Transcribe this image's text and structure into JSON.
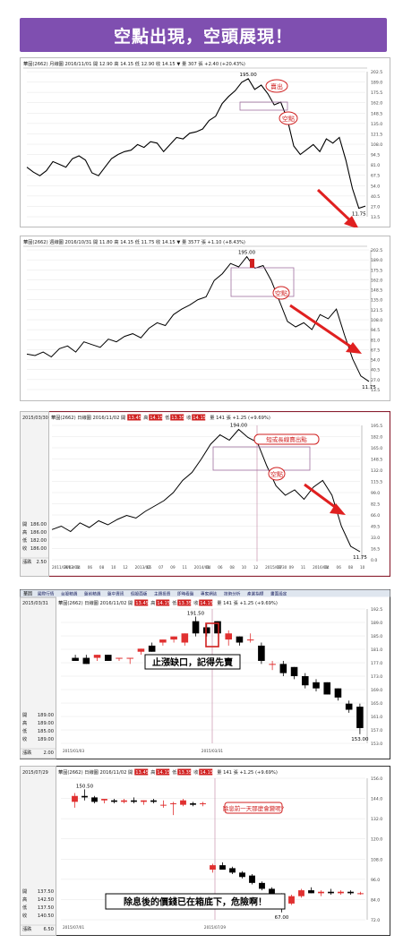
{
  "banner": {
    "title": "空點出現，空頭展現！"
  },
  "panels": [
    {
      "type": "line",
      "info": "華固(2662) 月線圖 2016/11/01 開 12.90 高 14.15 低 12.90 收 14.15 ▼ 量 307 張 +2.40 (+20.43%)",
      "peak_label": "195.00",
      "low_label": "11.75",
      "y_ticks": [
        "202.5",
        "189.0",
        "175.5",
        "162.0",
        "148.5",
        "135.0",
        "121.5",
        "108.0",
        "94.5",
        "81.0",
        "67.5",
        "54.0",
        "40.5",
        "27.0",
        "13.5"
      ],
      "annotations": [
        "賣出",
        "空點"
      ],
      "series": [
        {
          "x": 0,
          "y": 70
        },
        {
          "x": 4,
          "y": 63
        },
        {
          "x": 8,
          "y": 58
        },
        {
          "x": 12,
          "y": 65
        },
        {
          "x": 16,
          "y": 78
        },
        {
          "x": 20,
          "y": 74
        },
        {
          "x": 24,
          "y": 70
        },
        {
          "x": 28,
          "y": 82
        },
        {
          "x": 32,
          "y": 86
        },
        {
          "x": 36,
          "y": 80
        },
        {
          "x": 40,
          "y": 62
        },
        {
          "x": 44,
          "y": 58
        },
        {
          "x": 48,
          "y": 70
        },
        {
          "x": 52,
          "y": 82
        },
        {
          "x": 56,
          "y": 88
        },
        {
          "x": 60,
          "y": 92
        },
        {
          "x": 64,
          "y": 94
        },
        {
          "x": 68,
          "y": 102
        },
        {
          "x": 72,
          "y": 98
        },
        {
          "x": 76,
          "y": 106
        },
        {
          "x": 80,
          "y": 104
        },
        {
          "x": 84,
          "y": 92
        },
        {
          "x": 88,
          "y": 102
        },
        {
          "x": 92,
          "y": 112
        },
        {
          "x": 96,
          "y": 110
        },
        {
          "x": 100,
          "y": 118
        },
        {
          "x": 104,
          "y": 120
        },
        {
          "x": 108,
          "y": 124
        },
        {
          "x": 112,
          "y": 136
        },
        {
          "x": 116,
          "y": 142
        },
        {
          "x": 120,
          "y": 160
        },
        {
          "x": 124,
          "y": 170
        },
        {
          "x": 128,
          "y": 178
        },
        {
          "x": 132,
          "y": 190
        },
        {
          "x": 136,
          "y": 195
        },
        {
          "x": 140,
          "y": 180
        },
        {
          "x": 144,
          "y": 186
        },
        {
          "x": 148,
          "y": 174
        },
        {
          "x": 152,
          "y": 158
        },
        {
          "x": 156,
          "y": 162
        },
        {
          "x": 160,
          "y": 138
        },
        {
          "x": 164,
          "y": 100
        },
        {
          "x": 168,
          "y": 88
        },
        {
          "x": 172,
          "y": 95
        },
        {
          "x": 176,
          "y": 102
        },
        {
          "x": 180,
          "y": 92
        },
        {
          "x": 184,
          "y": 110
        },
        {
          "x": 188,
          "y": 104
        },
        {
          "x": 192,
          "y": 112
        },
        {
          "x": 196,
          "y": 80
        },
        {
          "x": 200,
          "y": 40
        },
        {
          "x": 204,
          "y": 12
        },
        {
          "x": 208,
          "y": 15
        }
      ]
    },
    {
      "type": "line",
      "info": "華固(2662) 週線圖 2016/10/31 開 11.80 高 14.15 低 11.75 收 14.15 ▼ 量 3577 張 +1.10 (+8.43%)",
      "peak_label": "195.00",
      "low_label": "11.75",
      "y_ticks": [
        "202.5",
        "189.0",
        "175.5",
        "162.0",
        "148.5",
        "135.0",
        "121.5",
        "108.0",
        "94.5",
        "81.0",
        "67.5",
        "54.0",
        "40.5",
        "27.0",
        "13.5"
      ],
      "annotations": [
        "空點"
      ],
      "series": [
        {
          "x": 0,
          "y": 52
        },
        {
          "x": 5,
          "y": 50
        },
        {
          "x": 10,
          "y": 55
        },
        {
          "x": 15,
          "y": 48
        },
        {
          "x": 20,
          "y": 60
        },
        {
          "x": 25,
          "y": 64
        },
        {
          "x": 30,
          "y": 55
        },
        {
          "x": 35,
          "y": 70
        },
        {
          "x": 40,
          "y": 66
        },
        {
          "x": 45,
          "y": 62
        },
        {
          "x": 50,
          "y": 74
        },
        {
          "x": 55,
          "y": 70
        },
        {
          "x": 60,
          "y": 78
        },
        {
          "x": 65,
          "y": 82
        },
        {
          "x": 70,
          "y": 76
        },
        {
          "x": 75,
          "y": 90
        },
        {
          "x": 80,
          "y": 98
        },
        {
          "x": 85,
          "y": 94
        },
        {
          "x": 90,
          "y": 110
        },
        {
          "x": 95,
          "y": 118
        },
        {
          "x": 100,
          "y": 124
        },
        {
          "x": 105,
          "y": 132
        },
        {
          "x": 110,
          "y": 136
        },
        {
          "x": 115,
          "y": 160
        },
        {
          "x": 120,
          "y": 170
        },
        {
          "x": 125,
          "y": 185
        },
        {
          "x": 130,
          "y": 180
        },
        {
          "x": 135,
          "y": 195
        },
        {
          "x": 140,
          "y": 178
        },
        {
          "x": 145,
          "y": 182
        },
        {
          "x": 150,
          "y": 160
        },
        {
          "x": 155,
          "y": 130
        },
        {
          "x": 160,
          "y": 100
        },
        {
          "x": 165,
          "y": 92
        },
        {
          "x": 170,
          "y": 98
        },
        {
          "x": 175,
          "y": 88
        },
        {
          "x": 180,
          "y": 110
        },
        {
          "x": 185,
          "y": 104
        },
        {
          "x": 190,
          "y": 118
        },
        {
          "x": 195,
          "y": 80
        },
        {
          "x": 200,
          "y": 45
        },
        {
          "x": 205,
          "y": 20
        },
        {
          "x": 210,
          "y": 12
        }
      ]
    },
    {
      "type": "line",
      "date": "2015/03/30",
      "info_left": "華固(2662) 日線圖 2016/11/02 開",
      "info_vals": [
        "13.45",
        "14.15",
        "13.35",
        "14.15"
      ],
      "info_right": "量 141 張 +1.25 (+9.69%)",
      "peak_label": "194.00",
      "low_label": "11.75",
      "ohlc": [
        [
          "開",
          "186.00"
        ],
        [
          "高",
          "186.00"
        ],
        [
          "低",
          "182.00"
        ],
        [
          "收",
          "186.00"
        ]
      ],
      "vol_label": "漲跌",
      "vol_value": "2.50",
      "x_labels": [
        "2011/09/03",
        "2012/01",
        "04",
        "06",
        "08",
        "10",
        "12",
        "2013/02",
        "05",
        "07",
        "09",
        "11",
        "2014/01",
        "04",
        "06",
        "08",
        "10",
        "12",
        "2015/03/30",
        "07",
        "09",
        "11",
        "2016/01",
        "04",
        "06",
        "08",
        "10"
      ],
      "y_ticks": [
        "195.5",
        "182.0",
        "165.0",
        "148.5",
        "132.0",
        "115.5",
        "99.0",
        "82.5",
        "66.0",
        "49.5",
        "33.0",
        "16.5",
        "0.0"
      ],
      "annotations": [
        "短或長線賣出點",
        "空點"
      ],
      "series": [
        {
          "x": 0,
          "y": 45
        },
        {
          "x": 8,
          "y": 50
        },
        {
          "x": 16,
          "y": 42
        },
        {
          "x": 24,
          "y": 55
        },
        {
          "x": 32,
          "y": 48
        },
        {
          "x": 40,
          "y": 58
        },
        {
          "x": 48,
          "y": 52
        },
        {
          "x": 56,
          "y": 60
        },
        {
          "x": 64,
          "y": 66
        },
        {
          "x": 72,
          "y": 62
        },
        {
          "x": 80,
          "y": 72
        },
        {
          "x": 88,
          "y": 80
        },
        {
          "x": 96,
          "y": 88
        },
        {
          "x": 104,
          "y": 100
        },
        {
          "x": 112,
          "y": 118
        },
        {
          "x": 120,
          "y": 130
        },
        {
          "x": 128,
          "y": 150
        },
        {
          "x": 136,
          "y": 172
        },
        {
          "x": 144,
          "y": 186
        },
        {
          "x": 152,
          "y": 178
        },
        {
          "x": 160,
          "y": 194
        },
        {
          "x": 168,
          "y": 182
        },
        {
          "x": 176,
          "y": 175
        },
        {
          "x": 184,
          "y": 140
        },
        {
          "x": 192,
          "y": 110
        },
        {
          "x": 200,
          "y": 96
        },
        {
          "x": 208,
          "y": 104
        },
        {
          "x": 216,
          "y": 90
        },
        {
          "x": 224,
          "y": 108
        },
        {
          "x": 232,
          "y": 118
        },
        {
          "x": 240,
          "y": 96
        },
        {
          "x": 248,
          "y": 50
        },
        {
          "x": 256,
          "y": 20
        },
        {
          "x": 264,
          "y": 12
        }
      ]
    },
    {
      "type": "candlestick",
      "date": "2015/03/31",
      "toolbar_left": "華固",
      "toolbar": [
        "國際行情",
        "台股精選",
        "盤前精選",
        "盤中資訊",
        "個股面版",
        "主題投資",
        "即時看盤",
        "專家網誌",
        "技術分析",
        "產業指標",
        "畫面設定"
      ],
      "info_left": "華固(2662) 日線圖 2016/11/02 開",
      "info_vals": [
        "13.45",
        "14.15",
        "13.35",
        "14.15"
      ],
      "info_right": "量 141 張 +1.25 (+9.69%)",
      "peak_label": "191.50",
      "low_label": "153.00",
      "ohlc": [
        [
          "開",
          "189.00"
        ],
        [
          "高",
          "189.00"
        ],
        [
          "低",
          "185.00"
        ],
        [
          "收",
          "189.00"
        ]
      ],
      "vol_label": "漲跌",
      "vol_value": "2.00",
      "x_labels": [
        "2015/01/03",
        "2015/03/31"
      ],
      "y_ticks": [
        "192.5",
        "189.0",
        "185.0",
        "181.0",
        "177.0",
        "173.0",
        "169.0",
        "165.0",
        "161.0",
        "157.0",
        "153.0"
      ],
      "annotations": [
        "止漲缺口，記得先賣"
      ],
      "ylim": [
        150,
        194
      ],
      "candles": [
        {
          "o": 178,
          "h": 179,
          "l": 177,
          "c": 177
        },
        {
          "o": 178,
          "h": 179,
          "l": 176,
          "c": 176
        },
        {
          "o": 178,
          "h": 179,
          "l": 177,
          "c": 179
        },
        {
          "o": 179,
          "h": 179,
          "l": 177,
          "c": 177
        },
        {
          "o": 178,
          "h": 178,
          "l": 177,
          "c": 178
        },
        {
          "o": 178,
          "h": 178,
          "l": 176,
          "c": 178
        },
        {
          "o": 180,
          "h": 181,
          "l": 179,
          "c": 181
        },
        {
          "o": 182,
          "h": 183,
          "l": 180,
          "c": 180
        },
        {
          "o": 183,
          "h": 184,
          "l": 182,
          "c": 184
        },
        {
          "o": 184,
          "h": 185,
          "l": 183,
          "c": 185
        },
        {
          "o": 183,
          "h": 186,
          "l": 182,
          "c": 186
        },
        {
          "o": 190,
          "h": 191.5,
          "l": 185,
          "c": 186
        },
        {
          "o": 188,
          "h": 189,
          "l": 185,
          "c": 186
        },
        {
          "o": 190,
          "h": 190,
          "l": 186,
          "c": 186
        },
        {
          "o": 184,
          "h": 187,
          "l": 182,
          "c": 186
        },
        {
          "o": 185,
          "h": 185,
          "l": 182,
          "c": 183
        },
        {
          "o": 184,
          "h": 186,
          "l": 183,
          "c": 184
        },
        {
          "o": 182,
          "h": 183,
          "l": 176,
          "c": 177
        },
        {
          "o": 176,
          "h": 177,
          "l": 174,
          "c": 176
        },
        {
          "o": 176,
          "h": 177,
          "l": 172,
          "c": 173
        },
        {
          "o": 175,
          "h": 175,
          "l": 171,
          "c": 172
        },
        {
          "o": 172,
          "h": 173,
          "l": 168,
          "c": 169
        },
        {
          "o": 170,
          "h": 171,
          "l": 167,
          "c": 168
        },
        {
          "o": 170,
          "h": 170,
          "l": 166,
          "c": 166
        },
        {
          "o": 168,
          "h": 168,
          "l": 164,
          "c": 165
        },
        {
          "o": 163,
          "h": 164,
          "l": 160,
          "c": 161
        },
        {
          "o": 162,
          "h": 163,
          "l": 153,
          "c": 155
        }
      ]
    },
    {
      "type": "candlestick",
      "date": "2015/07/29",
      "info_left": "華固(2662) 日線圖 2016/11/02 開",
      "info_vals": [
        "13.45",
        "14.15",
        "13.35",
        "14.15"
      ],
      "info_right": "量 141 張 +1.25 (+9.69%)",
      "peak_label": "150.50",
      "low_label": "67.00",
      "ohlc": [
        [
          "開",
          "137.50"
        ],
        [
          "高",
          "142.50"
        ],
        [
          "低",
          "137.50"
        ],
        [
          "收",
          "140.50"
        ]
      ],
      "vol_label": "漲跌",
      "vol_value": "6.50",
      "x_labels": [
        "2015/07/01",
        "2015/07/29"
      ],
      "y_ticks": [
        "156.0",
        "144.0",
        "132.0",
        "120.0",
        "108.0",
        "96.0",
        "84.0",
        "72.0"
      ],
      "annotations": [
        "除息前一天那麼會變呢?",
        "除息後的價錢已在箱底下，危險啊！"
      ],
      "ylim": [
        62,
        158
      ],
      "candles": [
        {
          "o": 142,
          "h": 148,
          "l": 138,
          "c": 146
        },
        {
          "o": 146,
          "h": 150.5,
          "l": 143,
          "c": 145
        },
        {
          "o": 145,
          "h": 146,
          "l": 141,
          "c": 142
        },
        {
          "o": 143,
          "h": 144,
          "l": 141,
          "c": 144
        },
        {
          "o": 143,
          "h": 144,
          "l": 141,
          "c": 142
        },
        {
          "o": 142,
          "h": 144,
          "l": 141,
          "c": 143
        },
        {
          "o": 143,
          "h": 145,
          "l": 141,
          "c": 142
        },
        {
          "o": 142,
          "h": 143,
          "l": 140,
          "c": 143
        },
        {
          "o": 143,
          "h": 144,
          "l": 141,
          "c": 142
        },
        {
          "o": 140,
          "h": 143,
          "l": 138,
          "c": 140
        },
        {
          "o": 141,
          "h": 142,
          "l": 133,
          "c": 141
        },
        {
          "o": 140,
          "h": 144,
          "l": 139,
          "c": 143
        },
        {
          "o": 141,
          "h": 142,
          "l": 139,
          "c": 140
        },
        {
          "o": 141,
          "h": 142,
          "l": 139,
          "c": 141
        },
        {
          "o": 96,
          "h": 100,
          "l": 94,
          "c": 99
        },
        {
          "o": 99,
          "h": 101,
          "l": 96,
          "c": 96
        },
        {
          "o": 97,
          "h": 98,
          "l": 93,
          "c": 94
        },
        {
          "o": 94,
          "h": 95,
          "l": 90,
          "c": 91
        },
        {
          "o": 92,
          "h": 93,
          "l": 86,
          "c": 87
        },
        {
          "o": 87,
          "h": 88,
          "l": 82,
          "c": 83
        },
        {
          "o": 83,
          "h": 84,
          "l": 76,
          "c": 79
        },
        {
          "o": 78,
          "h": 80,
          "l": 67,
          "c": 72
        },
        {
          "o": 73,
          "h": 79,
          "l": 72,
          "c": 78
        },
        {
          "o": 78,
          "h": 83,
          "l": 77,
          "c": 82
        },
        {
          "o": 82,
          "h": 84,
          "l": 80,
          "c": 80
        },
        {
          "o": 80,
          "h": 82,
          "l": 78,
          "c": 81
        },
        {
          "o": 81,
          "h": 83,
          "l": 79,
          "c": 80
        },
        {
          "o": 80,
          "h": 82,
          "l": 79,
          "c": 81
        },
        {
          "o": 81,
          "h": 82,
          "l": 79,
          "c": 80
        },
        {
          "o": 80,
          "h": 81,
          "l": 79,
          "c": 80
        }
      ]
    }
  ],
  "colors": {
    "banner": "#7f4fb0",
    "line": "#000000",
    "up": "#e03030",
    "down": "#000000",
    "annot": "#d02020",
    "arrow": "#e02020",
    "frame": "#c0a0c0",
    "navy": "#1a2060"
  }
}
